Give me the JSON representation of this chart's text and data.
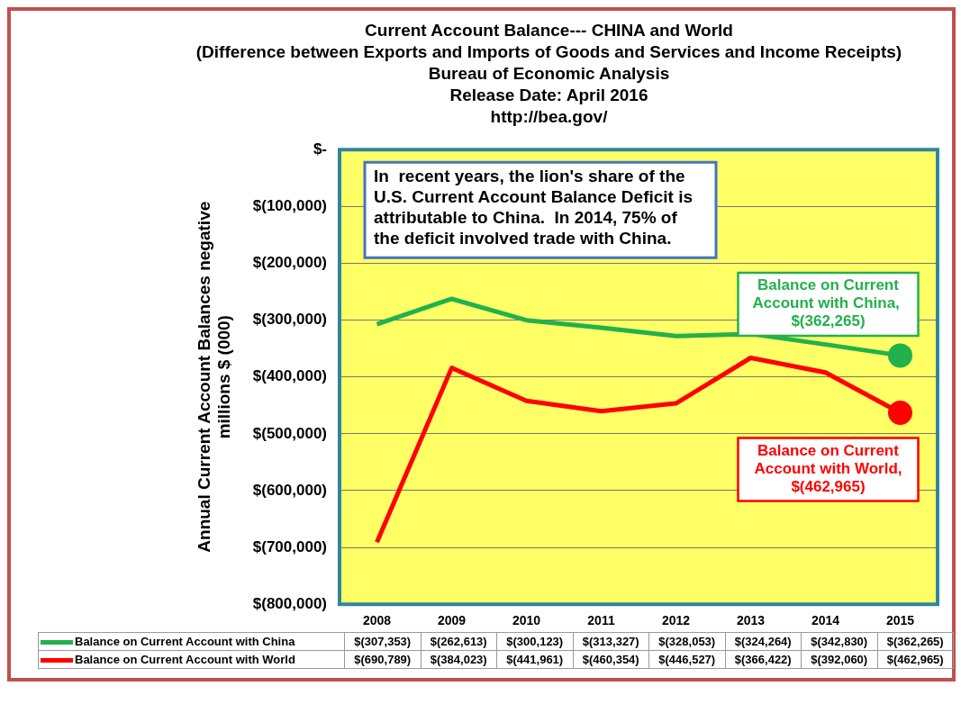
{
  "chart_data": {
    "type": "line",
    "title": "Current Account Balance--- CHINA and World",
    "subtitle": "(Difference between Exports and Imports of Goods and Services and Income Receipts)\nBureau of Economic Analysis\nRelease Date: April 2016\nhttp://bea.gov/",
    "ylabel": "Annual Current Account Balances negative millions $ (000)",
    "categories": [
      "2008",
      "2009",
      "2010",
      "2011",
      "2012",
      "2013",
      "2014",
      "2015"
    ],
    "series": [
      {
        "name": "Balance on Current Account with China",
        "color": "#22b14c",
        "values": [
          -307353,
          -262613,
          -300123,
          -313327,
          -328053,
          -324264,
          -342830,
          -362265
        ],
        "value_labels": [
          "$(307,353)",
          "$(262,613)",
          "$(300,123)",
          "$(313,327)",
          "$(328,053)",
          "$(324,264)",
          "$(342,830)",
          "$(362,265)"
        ]
      },
      {
        "name": "Balance on Current Account with World",
        "color": "#ff0000",
        "values": [
          -690789,
          -384023,
          -441961,
          -460354,
          -446527,
          -366422,
          -392060,
          -462965
        ],
        "value_labels": [
          "$(690,789)",
          "$(384,023)",
          "$(441,961)",
          "$(460,354)",
          "$(446,527)",
          "$(366,422)",
          "$(392,060)",
          "$(462,965)"
        ]
      }
    ],
    "ylim": [
      -800000,
      0
    ],
    "yticks": [
      {
        "value": -800000,
        "label": "$(800,000)"
      },
      {
        "value": -700000,
        "label": "$(700,000)"
      },
      {
        "value": -600000,
        "label": "$(600,000)"
      },
      {
        "value": -500000,
        "label": "$(500,000)"
      },
      {
        "value": -400000,
        "label": "$(400,000)"
      },
      {
        "value": -300000,
        "label": "$(300,000)"
      },
      {
        "value": -200000,
        "label": "$(200,000)"
      },
      {
        "value": -100000,
        "label": "$(100,000)"
      },
      {
        "value": 0,
        "label": "$-"
      }
    ],
    "grid": "y",
    "legend": "bottom",
    "line_style": "solid",
    "annotations": [
      "In  recent years, the lion's share of the U.S. Current Account Balance Deficit is attributable to China.  In 2014, 75% of the deficit involved trade with China.",
      {
        "text": "Balance on Current Account with China,  $(362,265)",
        "x": "2015",
        "y": -362265
      },
      {
        "text": "Balance on Current Account with World, $(462,965)",
        "x": "2015",
        "y": -462965
      }
    ]
  }
}
